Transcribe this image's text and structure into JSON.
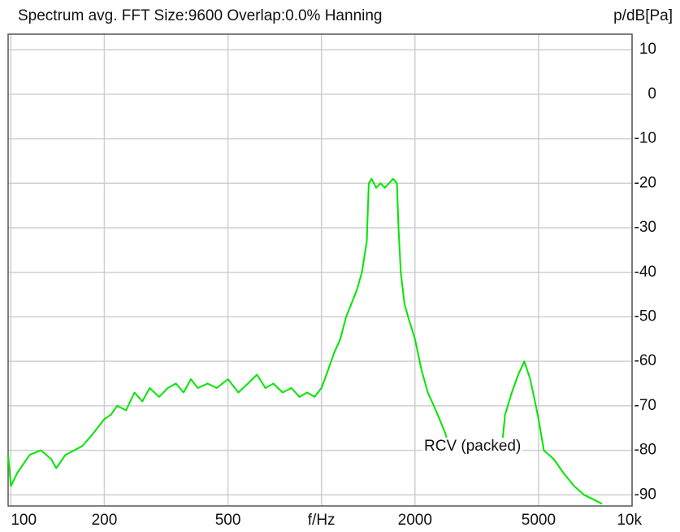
{
  "chart_data": {
    "type": "line",
    "title": "Spectrum avg.  FFT Size:9600  Overlap:0.0%  Hanning",
    "y_label": "p/dB[Pa]",
    "annotation": "RCV (packed)",
    "x_log": true,
    "grid": true,
    "xlim": [
      98,
      10000
    ],
    "xticks": [
      100,
      200,
      500,
      {
        "value": 1000,
        "label": "f/Hz"
      },
      2000,
      5000,
      {
        "value": 10000,
        "label": "10k"
      }
    ],
    "ylim": [
      -92.5,
      13.5
    ],
    "yticks": [
      10,
      0,
      -10,
      -20,
      -30,
      -40,
      -50,
      -60,
      -70,
      -80,
      -90
    ],
    "x": [
      98,
      100,
      105,
      115,
      125,
      135,
      140,
      150,
      160,
      170,
      180,
      190,
      200,
      210,
      220,
      235,
      250,
      265,
      280,
      300,
      320,
      340,
      360,
      380,
      400,
      430,
      460,
      500,
      540,
      580,
      620,
      660,
      700,
      750,
      800,
      850,
      900,
      950,
      1000,
      1050,
      1100,
      1150,
      1200,
      1250,
      1300,
      1350,
      1400,
      1420,
      1450,
      1500,
      1550,
      1600,
      1650,
      1700,
      1750,
      1770,
      1800,
      1850,
      1900,
      2000,
      2100,
      2200,
      2300,
      2400,
      2500,
      2600,
      3000,
      3500,
      3800,
      3900,
      4100,
      4300,
      4500,
      4700,
      4900,
      5000,
      5200,
      5600,
      6000,
      6500,
      7000,
      7500,
      8000
    ],
    "series": [
      {
        "name": "RCV (packed)",
        "color": "#00e600",
        "values": [
          -81,
          -88,
          -85,
          -81,
          -80,
          -82,
          -84,
          -81,
          -80,
          -79,
          -77,
          -75,
          -73,
          -72,
          -70,
          -71,
          -67,
          -69,
          -66,
          -68,
          -66,
          -65,
          -67,
          -64,
          -66,
          -65,
          -66,
          -64,
          -67,
          -65,
          -63,
          -66,
          -65,
          -67,
          -66,
          -68,
          -67,
          -68,
          -66,
          -62,
          -58,
          -55,
          -50,
          -47,
          -44,
          -40,
          -33,
          -20,
          -19,
          -21,
          -20,
          -21,
          -20,
          -19,
          -20,
          -30,
          -40,
          -47,
          -50,
          -55,
          -62,
          -67,
          -70,
          -73,
          -76,
          -80,
          -80,
          -80.5,
          -80,
          -72,
          -67,
          -63,
          -60,
          -64,
          -70,
          -73,
          -80,
          -82,
          -85,
          -88,
          -90,
          -91,
          -92
        ]
      }
    ]
  }
}
